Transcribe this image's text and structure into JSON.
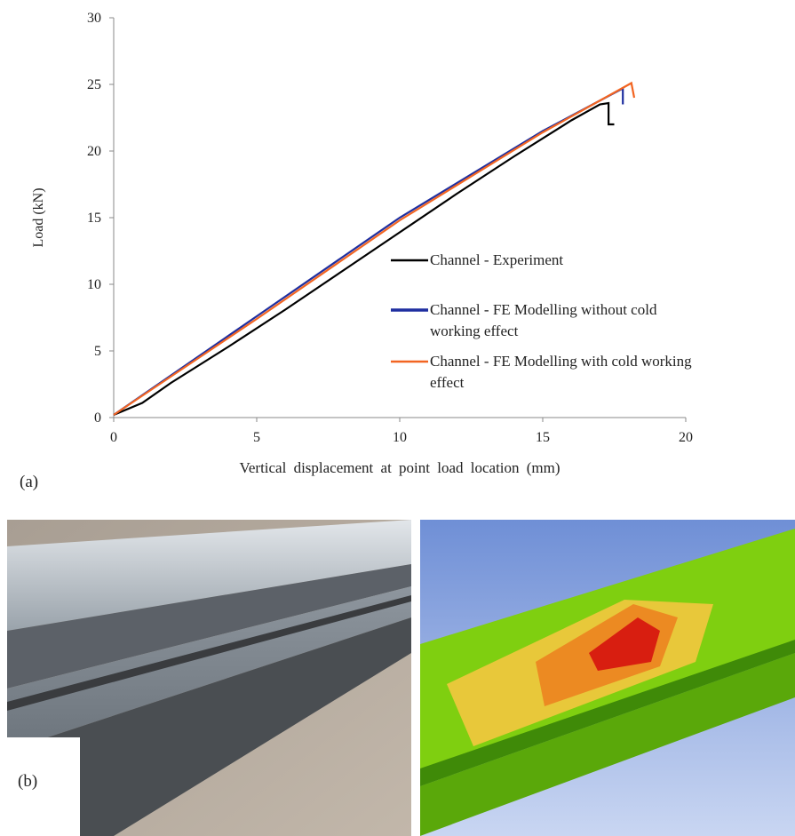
{
  "chart_data": {
    "type": "line",
    "ylabel": "Load (kN)",
    "xlabel": "Vertical displacement at point load location (mm)",
    "xlim": [
      0,
      20
    ],
    "xticks": [
      0,
      5,
      10,
      15,
      20
    ],
    "ylim": [
      0,
      30
    ],
    "yticks": [
      0,
      5,
      10,
      15,
      20,
      25,
      30
    ],
    "grid": false,
    "series": [
      {
        "name": "Channel - Experiment",
        "color": "#000000",
        "x": [
          0,
          1,
          2,
          4,
          6,
          8,
          10,
          12,
          14,
          16,
          17,
          17.3,
          17.3,
          17.5
        ],
        "values": [
          0.2,
          1.1,
          2.6,
          5.3,
          8.1,
          11.0,
          13.9,
          16.8,
          19.6,
          22.3,
          23.5,
          23.6,
          22.0,
          22.0
        ]
      },
      {
        "name": "Channel - FE Modelling without cold working effect",
        "color": "#1f2fa0",
        "x": [
          0,
          5,
          10,
          15,
          17.8,
          17.8
        ],
        "values": [
          0.2,
          7.6,
          15.0,
          21.5,
          24.7,
          23.5
        ]
      },
      {
        "name": "Channel - FE Modelling with cold working effect",
        "color": "#f26522",
        "x": [
          0,
          5,
          10,
          15,
          18.1,
          18.2
        ],
        "values": [
          0.2,
          7.4,
          14.8,
          21.4,
          25.1,
          24.0
        ]
      }
    ]
  },
  "panel_labels": [
    "(a)",
    "(b)"
  ]
}
